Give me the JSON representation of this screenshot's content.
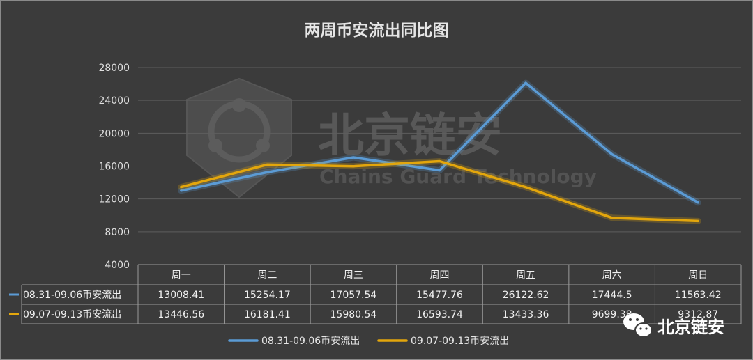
{
  "chart_data": {
    "type": "line",
    "title": "两周币安流出同比图",
    "categories": [
      "周一",
      "周二",
      "周三",
      "周四",
      "周五",
      "周六",
      "周日"
    ],
    "series": [
      {
        "name": "08.31-09.06币安流出",
        "color": "#5b9bd5",
        "values": [
          13008.41,
          15254.17,
          17057.54,
          15477.76,
          26122.62,
          17444.5,
          11563.42
        ],
        "labels": [
          "13008.41",
          "15254.17",
          "17057.54",
          "15477.76",
          "26122.62",
          "17444.5",
          "11563.42"
        ]
      },
      {
        "name": "09.07-09.13币安流出",
        "color": "#e3a60c",
        "values": [
          13446.56,
          16181.41,
          15980.54,
          16593.74,
          13433.36,
          9699.38,
          9312.87
        ],
        "labels": [
          "13446.56",
          "16181.41",
          "15980.54",
          "16593.74",
          "13433.36",
          "9699.38",
          "9312.87"
        ]
      }
    ],
    "ylim": [
      4000,
      28000
    ],
    "yticks": [
      "4000",
      "8000",
      "12000",
      "16000",
      "20000",
      "24000",
      "28000"
    ],
    "grid": true,
    "legend_position": "bottom"
  },
  "watermark": {
    "brand": "北京链安",
    "brand_en": "Chains Guard Technology"
  },
  "credit": {
    "text": "北京链安",
    "icon": "wechat-icon"
  }
}
